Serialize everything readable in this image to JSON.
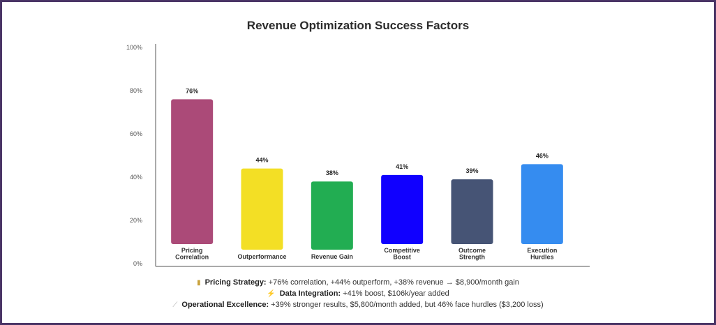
{
  "chart_data": {
    "type": "bar",
    "title": "Revenue Optimization Success Factors",
    "categories": [
      [
        "Pricing",
        "Correlation"
      ],
      [
        "Outperformance"
      ],
      [
        "Revenue Gain"
      ],
      [
        "Competitive",
        "Boost"
      ],
      [
        "Outcome",
        "Strength"
      ],
      [
        "Execution",
        "Hurdles"
      ]
    ],
    "values": [
      76,
      44,
      38,
      41,
      39,
      46
    ],
    "value_labels": [
      "76%",
      "44%",
      "38%",
      "41%",
      "39%",
      "46%"
    ],
    "colors": [
      "#ab4a78",
      "#f3df25",
      "#22ad52",
      "#1000ff",
      "#465475",
      "#358cf0"
    ],
    "ylim": [
      0,
      100
    ],
    "yticks": [
      "0%",
      "20%",
      "40%",
      "60%",
      "80%",
      "100%"
    ],
    "grid": false
  },
  "footer": [
    {
      "icon": "bar-chart-icon",
      "glyph": "▮",
      "label": "Pricing Strategy:",
      "text": " +76% correlation, +44% outperform, +38% revenue → $8,900/month gain"
    },
    {
      "icon": "lightning-icon",
      "glyph": "⚡",
      "label": "Data Integration:",
      "text": " +41% boost, $106k/year added"
    },
    {
      "icon": "wrench-icon",
      "glyph": "⟋",
      "label": "Operational Excellence:",
      "text": " +39% stronger results, $5,800/month added, but 46% face hurdles ($3,200 loss)"
    }
  ]
}
